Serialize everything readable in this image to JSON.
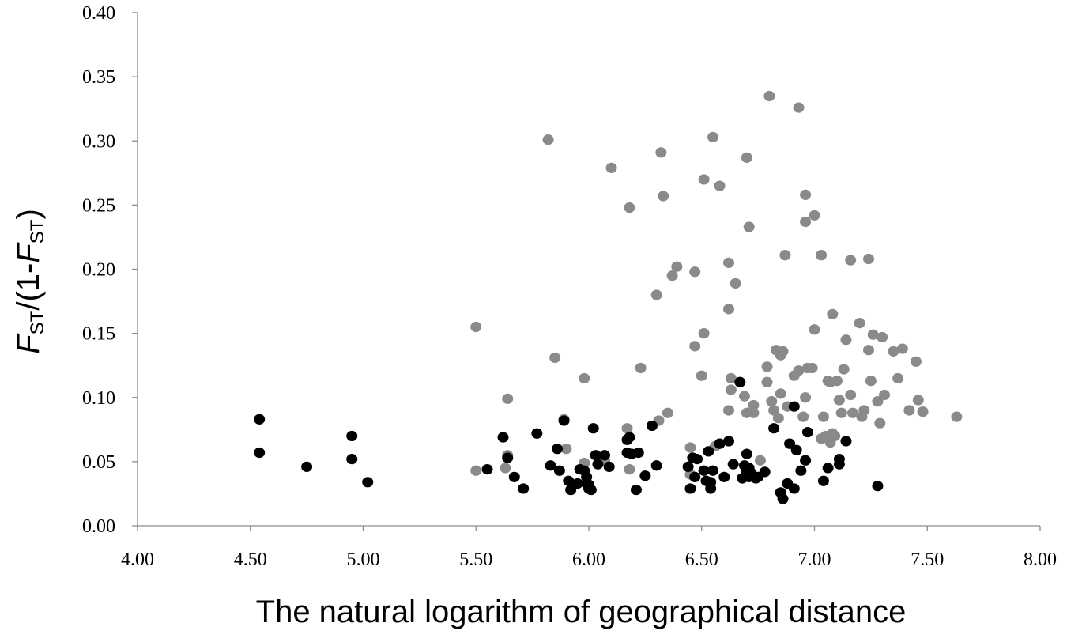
{
  "chart_data": {
    "type": "scatter",
    "xlabel": "The natural logarithm of geographical distance",
    "ylabel": {
      "f1": "F",
      "sub1": "ST",
      "mid": "/(1-",
      "f2": "F",
      "sub2": "ST",
      "end": ")"
    },
    "xlim": [
      4.0,
      8.0
    ],
    "ylim": [
      0.0,
      0.4
    ],
    "x_ticks": [
      "4.00",
      "4.50",
      "5.00",
      "5.50",
      "6.00",
      "6.50",
      "7.00",
      "7.50",
      "8.00"
    ],
    "y_ticks": [
      "0.00",
      "0.05",
      "0.10",
      "0.15",
      "0.20",
      "0.25",
      "0.30",
      "0.35",
      "0.40"
    ],
    "grid": false,
    "series": [
      {
        "color": "#8a8a8a",
        "points": [
          [
            5.5,
            0.043
          ],
          [
            5.5,
            0.155
          ],
          [
            5.63,
            0.045
          ],
          [
            5.64,
            0.055
          ],
          [
            5.64,
            0.099
          ],
          [
            5.82,
            0.301
          ],
          [
            5.85,
            0.131
          ],
          [
            5.89,
            0.083
          ],
          [
            5.9,
            0.06
          ],
          [
            5.98,
            0.115
          ],
          [
            5.98,
            0.049
          ],
          [
            6.07,
            0.051
          ],
          [
            6.1,
            0.279
          ],
          [
            6.18,
            0.248
          ],
          [
            6.17,
            0.076
          ],
          [
            6.18,
            0.044
          ],
          [
            6.23,
            0.123
          ],
          [
            6.3,
            0.18
          ],
          [
            6.31,
            0.082
          ],
          [
            6.32,
            0.291
          ],
          [
            6.33,
            0.257
          ],
          [
            6.35,
            0.088
          ],
          [
            6.37,
            0.195
          ],
          [
            6.39,
            0.202
          ],
          [
            6.45,
            0.04
          ],
          [
            6.45,
            0.061
          ],
          [
            6.47,
            0.14
          ],
          [
            6.47,
            0.198
          ],
          [
            6.5,
            0.117
          ],
          [
            6.51,
            0.15
          ],
          [
            6.51,
            0.27
          ],
          [
            6.55,
            0.303
          ],
          [
            6.56,
            0.062
          ],
          [
            6.58,
            0.265
          ],
          [
            6.62,
            0.169
          ],
          [
            6.62,
            0.205
          ],
          [
            6.63,
            0.115
          ],
          [
            6.63,
            0.106
          ],
          [
            6.62,
            0.09
          ],
          [
            6.65,
            0.189
          ],
          [
            6.69,
            0.101
          ],
          [
            6.7,
            0.287
          ],
          [
            6.7,
            0.088
          ],
          [
            6.71,
            0.233
          ],
          [
            6.73,
            0.088
          ],
          [
            6.73,
            0.094
          ],
          [
            6.76,
            0.051
          ],
          [
            6.79,
            0.112
          ],
          [
            6.79,
            0.124
          ],
          [
            6.8,
            0.335
          ],
          [
            6.81,
            0.097
          ],
          [
            6.82,
            0.09
          ],
          [
            6.83,
            0.137
          ],
          [
            6.84,
            0.084
          ],
          [
            6.85,
            0.103
          ],
          [
            6.85,
            0.133
          ],
          [
            6.86,
            0.136
          ],
          [
            6.87,
            0.211
          ],
          [
            6.88,
            0.093
          ],
          [
            6.91,
            0.117
          ],
          [
            6.93,
            0.326
          ],
          [
            6.93,
            0.121
          ],
          [
            6.95,
            0.085
          ],
          [
            6.96,
            0.237
          ],
          [
            6.96,
            0.258
          ],
          [
            6.96,
            0.1
          ],
          [
            6.97,
            0.123
          ],
          [
            6.99,
            0.123
          ],
          [
            7.0,
            0.242
          ],
          [
            7.0,
            0.153
          ],
          [
            7.03,
            0.211
          ],
          [
            7.03,
            0.068
          ],
          [
            7.04,
            0.085
          ],
          [
            7.05,
            0.07
          ],
          [
            7.06,
            0.113
          ],
          [
            7.07,
            0.112
          ],
          [
            7.07,
            0.065
          ],
          [
            7.08,
            0.072
          ],
          [
            7.08,
            0.165
          ],
          [
            7.09,
            0.07
          ],
          [
            7.1,
            0.113
          ],
          [
            7.11,
            0.098
          ],
          [
            7.12,
            0.088
          ],
          [
            7.13,
            0.122
          ],
          [
            7.14,
            0.145
          ],
          [
            7.16,
            0.207
          ],
          [
            7.16,
            0.102
          ],
          [
            7.17,
            0.088
          ],
          [
            7.2,
            0.158
          ],
          [
            7.21,
            0.085
          ],
          [
            7.22,
            0.09
          ],
          [
            7.24,
            0.208
          ],
          [
            7.24,
            0.137
          ],
          [
            7.25,
            0.113
          ],
          [
            7.26,
            0.149
          ],
          [
            7.28,
            0.097
          ],
          [
            7.29,
            0.08
          ],
          [
            7.3,
            0.147
          ],
          [
            7.31,
            0.102
          ],
          [
            7.35,
            0.136
          ],
          [
            7.37,
            0.115
          ],
          [
            7.39,
            0.138
          ],
          [
            7.42,
            0.09
          ],
          [
            7.45,
            0.128
          ],
          [
            7.46,
            0.098
          ],
          [
            7.48,
            0.089
          ],
          [
            7.63,
            0.085
          ]
        ]
      },
      {
        "color": "#000000",
        "points": [
          [
            4.54,
            0.083
          ],
          [
            4.54,
            0.057
          ],
          [
            4.75,
            0.046
          ],
          [
            4.95,
            0.07
          ],
          [
            4.95,
            0.052
          ],
          [
            5.02,
            0.034
          ],
          [
            5.55,
            0.044
          ],
          [
            5.62,
            0.069
          ],
          [
            5.64,
            0.053
          ],
          [
            5.67,
            0.038
          ],
          [
            5.71,
            0.029
          ],
          [
            5.77,
            0.072
          ],
          [
            5.83,
            0.047
          ],
          [
            5.86,
            0.06
          ],
          [
            5.87,
            0.043
          ],
          [
            5.89,
            0.082
          ],
          [
            5.91,
            0.035
          ],
          [
            5.92,
            0.028
          ],
          [
            5.95,
            0.033
          ],
          [
            5.96,
            0.044
          ],
          [
            5.98,
            0.043
          ],
          [
            5.99,
            0.033
          ],
          [
            5.99,
            0.038
          ],
          [
            6.0,
            0.032
          ],
          [
            6.0,
            0.029
          ],
          [
            6.01,
            0.028
          ],
          [
            6.02,
            0.076
          ],
          [
            6.03,
            0.055
          ],
          [
            6.04,
            0.048
          ],
          [
            6.07,
            0.055
          ],
          [
            6.09,
            0.046
          ],
          [
            6.17,
            0.057
          ],
          [
            6.17,
            0.067
          ],
          [
            6.18,
            0.069
          ],
          [
            6.19,
            0.056
          ],
          [
            6.21,
            0.028
          ],
          [
            6.22,
            0.057
          ],
          [
            6.25,
            0.039
          ],
          [
            6.28,
            0.078
          ],
          [
            6.3,
            0.047
          ],
          [
            6.44,
            0.046
          ],
          [
            6.45,
            0.029
          ],
          [
            6.46,
            0.053
          ],
          [
            6.47,
            0.038
          ],
          [
            6.48,
            0.052
          ],
          [
            6.51,
            0.043
          ],
          [
            6.52,
            0.035
          ],
          [
            6.53,
            0.058
          ],
          [
            6.54,
            0.029
          ],
          [
            6.54,
            0.034
          ],
          [
            6.55,
            0.043
          ],
          [
            6.58,
            0.064
          ],
          [
            6.6,
            0.038
          ],
          [
            6.62,
            0.066
          ],
          [
            6.64,
            0.048
          ],
          [
            6.67,
            0.112
          ],
          [
            6.68,
            0.037
          ],
          [
            6.69,
            0.047
          ],
          [
            6.7,
            0.056
          ],
          [
            6.7,
            0.042
          ],
          [
            6.71,
            0.045
          ],
          [
            6.71,
            0.038
          ],
          [
            6.72,
            0.041
          ],
          [
            6.74,
            0.037
          ],
          [
            6.75,
            0.038
          ],
          [
            6.78,
            0.042
          ],
          [
            6.82,
            0.076
          ],
          [
            6.85,
            0.026
          ],
          [
            6.86,
            0.021
          ],
          [
            6.88,
            0.033
          ],
          [
            6.89,
            0.064
          ],
          [
            6.91,
            0.093
          ],
          [
            6.91,
            0.029
          ],
          [
            6.92,
            0.059
          ],
          [
            6.94,
            0.043
          ],
          [
            6.96,
            0.051
          ],
          [
            6.97,
            0.073
          ],
          [
            7.04,
            0.035
          ],
          [
            7.06,
            0.045
          ],
          [
            7.11,
            0.052
          ],
          [
            7.11,
            0.048
          ],
          [
            7.14,
            0.066
          ],
          [
            7.28,
            0.031
          ]
        ]
      }
    ]
  }
}
